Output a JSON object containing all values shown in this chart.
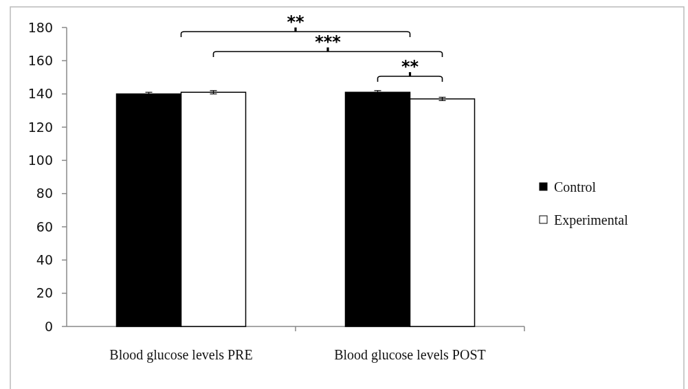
{
  "chart_data": {
    "type": "bar",
    "categories": [
      "Blood glucose levels PRE",
      "Blood glucose levels POST"
    ],
    "series": [
      {
        "name": "Control",
        "color": "#000000",
        "values": [
          140,
          141
        ],
        "errors": [
          1,
          1
        ]
      },
      {
        "name": "Experimental",
        "color": "#ffffff",
        "values": [
          141,
          137
        ],
        "errors": [
          1,
          1
        ]
      }
    ],
    "ylim": [
      0,
      180
    ],
    "yticks": [
      0,
      20,
      40,
      60,
      80,
      100,
      120,
      140,
      160,
      180
    ],
    "grid": false,
    "legend": "right",
    "annotations": [
      "**",
      "***",
      "**"
    ]
  }
}
